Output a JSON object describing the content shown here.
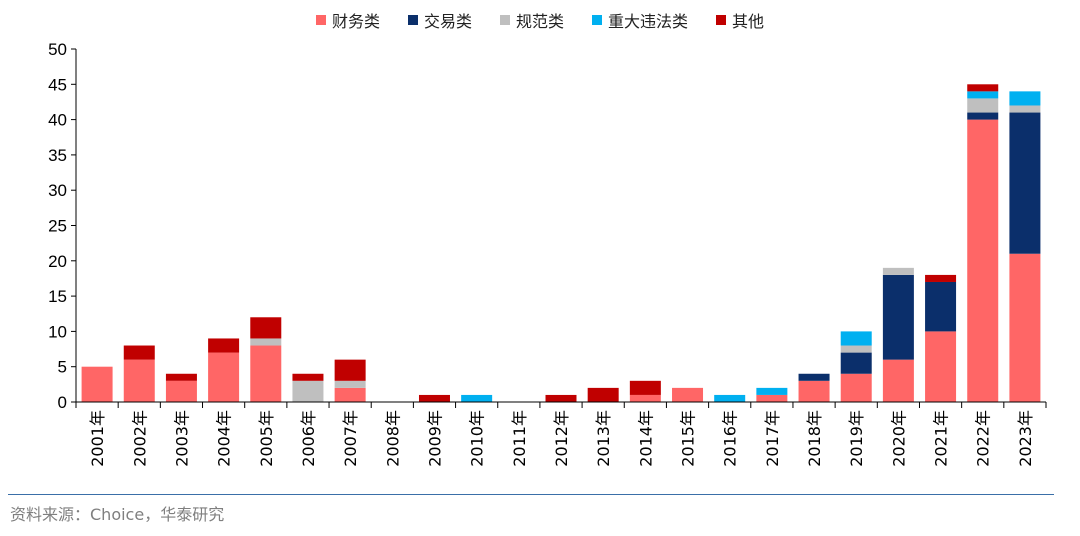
{
  "source_note": "资料来源：Choice，华泰研究",
  "chart_data": {
    "type": "bar",
    "stacked": true,
    "categories": [
      "2001年",
      "2002年",
      "2003年",
      "2004年",
      "2005年",
      "2006年",
      "2007年",
      "2008年",
      "2009年",
      "2010年",
      "2011年",
      "2012年",
      "2013年",
      "2014年",
      "2015年",
      "2016年",
      "2017年",
      "2018年",
      "2019年",
      "2020年",
      "2021年",
      "2022年",
      "2023年"
    ],
    "series": [
      {
        "name": "财务类",
        "color": "#ff6666",
        "values": [
          5,
          6,
          3,
          7,
          8,
          0,
          2,
          0,
          0,
          0,
          0,
          0,
          0,
          1,
          2,
          0,
          1,
          3,
          4,
          6,
          10,
          40,
          21
        ]
      },
      {
        "name": "交易类",
        "color": "#0b2f6b",
        "values": [
          0,
          0,
          0,
          0,
          0,
          0,
          0,
          0,
          0,
          0,
          0,
          0,
          0,
          0,
          0,
          0,
          0,
          1,
          3,
          12,
          7,
          1,
          20
        ]
      },
      {
        "name": "规范类",
        "color": "#bfbfbf",
        "values": [
          0,
          0,
          0,
          0,
          1,
          3,
          1,
          0,
          0,
          0,
          0,
          0,
          0,
          0,
          0,
          0,
          0,
          0,
          1,
          1,
          0,
          2,
          1
        ]
      },
      {
        "name": "重大违法类",
        "color": "#00b0f0",
        "values": [
          0,
          0,
          0,
          0,
          0,
          0,
          0,
          0,
          0,
          1,
          0,
          0,
          0,
          0,
          0,
          1,
          1,
          0,
          2,
          0,
          0,
          1,
          2
        ]
      },
      {
        "name": "其他",
        "color": "#c00000",
        "values": [
          0,
          2,
          1,
          2,
          3,
          1,
          3,
          0,
          1,
          0,
          0,
          1,
          2,
          2,
          0,
          0,
          0,
          0,
          0,
          0,
          1,
          1,
          0
        ]
      }
    ],
    "ylim": [
      0,
      50
    ],
    "yticks": [
      0,
      5,
      10,
      15,
      20,
      25,
      30,
      35,
      40,
      45,
      50
    ],
    "legend_position": "top",
    "grid": false
  }
}
